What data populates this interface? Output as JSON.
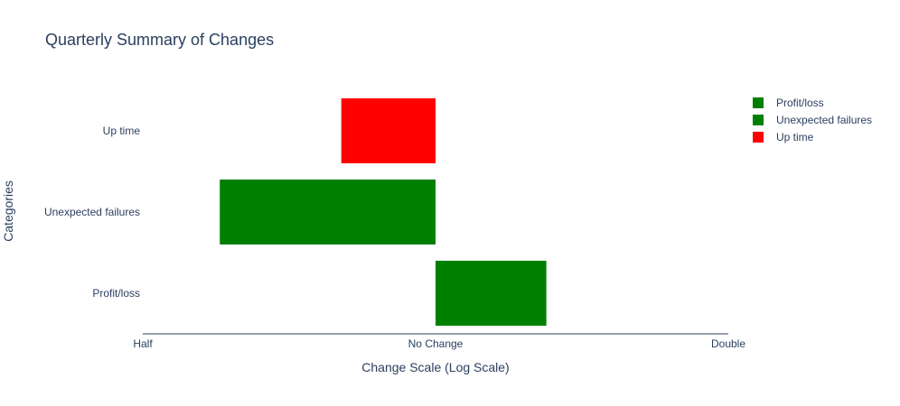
{
  "chart_data": {
    "type": "bar",
    "orientation": "horizontal",
    "title": "Quarterly Summary of Changes",
    "xlabel": "Change Scale (Log Scale)",
    "ylabel": "Categories",
    "x_scale": "log",
    "xlim": [
      0.5,
      2
    ],
    "x_ticks": [
      {
        "value": 0.5,
        "label": "Half"
      },
      {
        "value": 1,
        "label": "No Change"
      },
      {
        "value": 2,
        "label": "Double"
      }
    ],
    "base": 1,
    "categories": [
      "Profit/loss",
      "Unexpected failures",
      "Up time"
    ],
    "values": [
      1.3,
      0.6,
      0.8
    ],
    "colors": [
      "#008000",
      "#008000",
      "#ff0000"
    ],
    "grid": false,
    "legend_position": "top-right",
    "legend": [
      {
        "label": "Profit/loss",
        "color": "#008000"
      },
      {
        "label": "Unexpected failures",
        "color": "#008000"
      },
      {
        "label": "Up time",
        "color": "#ff0000"
      }
    ]
  }
}
